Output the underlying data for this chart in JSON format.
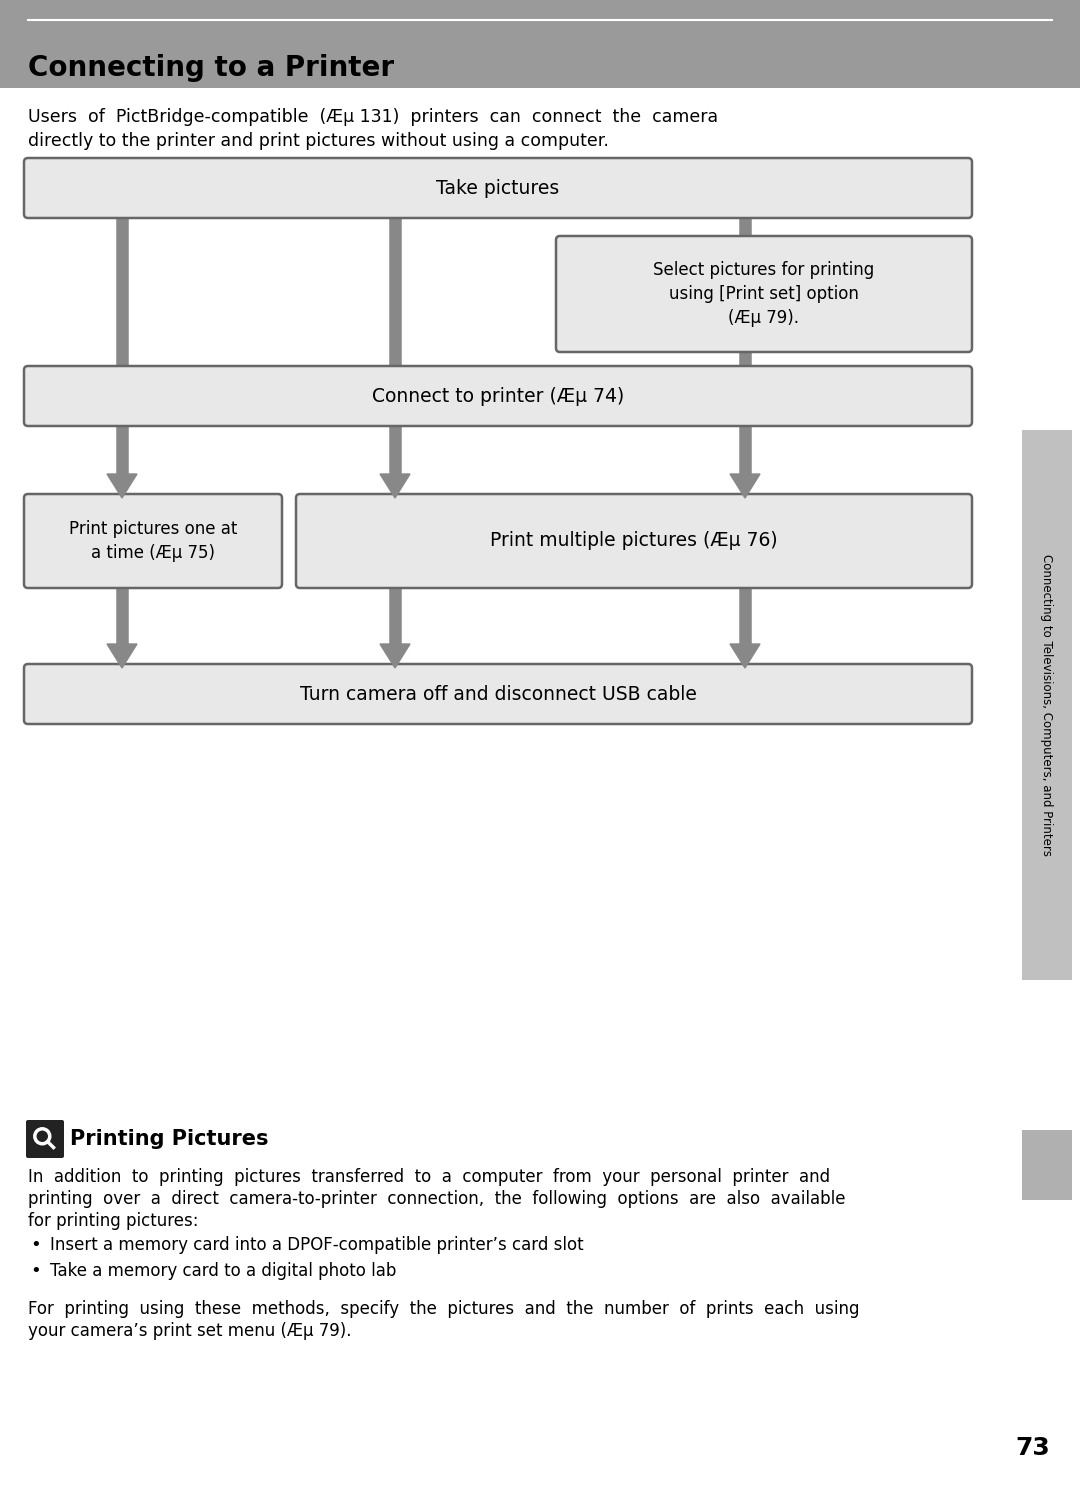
{
  "title": "Connecting to a Printer",
  "header_bg": "#9a9a9a",
  "page_bg": "#ffffff",
  "intro_text_line1": "Users  of  PictBridge-compatible  (Æµ 131)  printers  can  connect  the  camera",
  "intro_text_line2": "directly to the printer and print pictures without using a computer.",
  "box_bg": "#e8e8e8",
  "box_border": "#666666",
  "arrow_color": "#888888",
  "boxes": {
    "take_pictures": "Take pictures",
    "select_pictures": "Select pictures for printing\nusing [Print set] option\n(Æµ 79).",
    "connect_printer": "Connect to printer (Æµ 74)",
    "print_one": "Print pictures one at\na time (Æµ 75)",
    "print_multiple": "Print multiple pictures (Æµ 76)",
    "turn_off": "Turn camera off and disconnect USB cable"
  },
  "sidebar_text": "Connecting to Televisions, Computers, and Printers",
  "sidebar_bg": "#c0c0c0",
  "page_number": "73",
  "section_title": "Printing Pictures",
  "section_body_line1": "In  addition  to  printing  pictures  transferred  to  a  computer  from  your  personal  printer  and",
  "section_body_line2": "printing  over  a  direct  camera-to-printer  connection,  the  following  options  are  also  available",
  "section_body_line3": "for printing pictures:",
  "bullets": [
    "Insert a memory card into a DPOF-compatible printer’s card slot",
    "Take a memory card to a digital photo lab"
  ],
  "footer_line1": "For  printing  using  these  methods,  specify  the  pictures  and  the  number  of  prints  each  using",
  "footer_line2": "your camera’s print set menu (Æµ 79)."
}
